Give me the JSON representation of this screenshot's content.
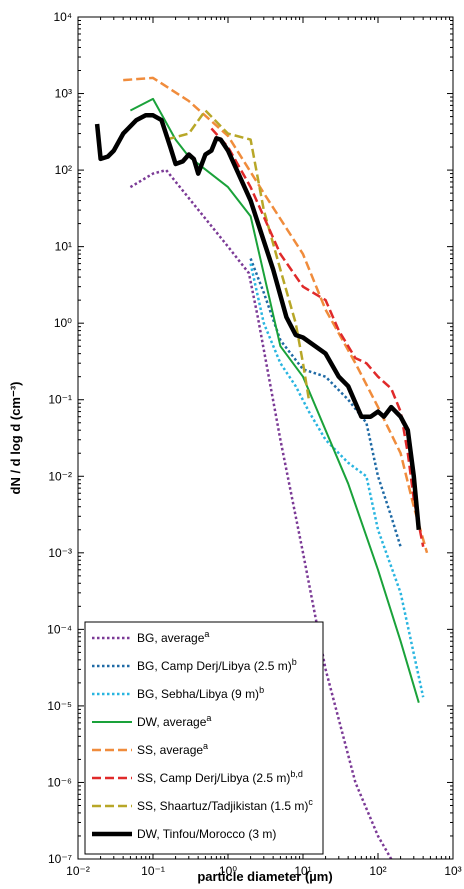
{
  "chart_data": {
    "type": "line",
    "xlabel": "particle diameter (µm)",
    "ylabel": "dN / d log d (cm⁻³)",
    "xscale": "log",
    "yscale": "log",
    "xlim": [
      0.01,
      1000
    ],
    "ylim": [
      1e-07,
      10000
    ],
    "legend_position": "bottom-left",
    "x_tick_labels": [
      "10⁻²",
      "10⁻¹",
      "10⁰",
      "10¹",
      "10²",
      "10³"
    ],
    "y_tick_labels": [
      "10⁴",
      "10³",
      "10²",
      "10¹",
      "10⁰",
      "10⁻¹",
      "10⁻²",
      "10⁻³",
      "10⁻⁴",
      "10⁻⁵",
      "10⁻⁶",
      "10⁻⁷"
    ],
    "series": [
      {
        "name": "BG, average",
        "superscript": "a",
        "color": "#7b3a96",
        "style": "dotted",
        "points": [
          [
            0.05,
            60
          ],
          [
            0.1,
            90
          ],
          [
            0.15,
            100
          ],
          [
            1.0,
            10
          ],
          [
            1.9,
            4.5
          ],
          [
            2.5,
            1.2
          ],
          [
            5,
            0.03
          ],
          [
            10,
            0.001
          ],
          [
            20,
            3e-05
          ],
          [
            50,
            1e-06
          ],
          [
            100,
            2e-07
          ],
          [
            150,
            1e-07
          ]
        ]
      },
      {
        "name": "BG, Camp Derj/Libya (2.5 m)",
        "superscript": "b",
        "color": "#1f6aa5",
        "style": "dotted",
        "points": [
          [
            2,
            7
          ],
          [
            3,
            2.5
          ],
          [
            5,
            0.6
          ],
          [
            10,
            0.25
          ],
          [
            20,
            0.2
          ],
          [
            40,
            0.1
          ],
          [
            70,
            0.05
          ],
          [
            100,
            0.01
          ],
          [
            150,
            0.003
          ],
          [
            200,
            0.0012
          ]
        ]
      },
      {
        "name": "BG, Sebha/Libya (9 m)",
        "superscript": "b",
        "color": "#29b5e0",
        "style": "dotted",
        "points": [
          [
            2,
            6
          ],
          [
            3,
            1
          ],
          [
            5,
            0.3
          ],
          [
            8,
            0.15
          ],
          [
            12,
            0.07
          ],
          [
            20,
            0.03
          ],
          [
            40,
            0.015
          ],
          [
            70,
            0.01
          ],
          [
            100,
            0.002
          ],
          [
            200,
            0.0003
          ],
          [
            400,
            1.3e-05
          ]
        ]
      },
      {
        "name": "DW, average",
        "superscript": "a",
        "color": "#1aa23a",
        "style": "solid",
        "points": [
          [
            0.05,
            600
          ],
          [
            0.1,
            850
          ],
          [
            0.2,
            250
          ],
          [
            0.3,
            150
          ],
          [
            1,
            60
          ],
          [
            2,
            25
          ],
          [
            5,
            0.5
          ],
          [
            10,
            0.2
          ],
          [
            40,
            0.008
          ],
          [
            100,
            0.0006
          ],
          [
            200,
            7e-05
          ],
          [
            350,
            1.1e-05
          ]
        ]
      },
      {
        "name": "SS, average",
        "superscript": "a",
        "color": "#f08c3c",
        "style": "dashed",
        "points": [
          [
            0.04,
            1500
          ],
          [
            0.1,
            1600
          ],
          [
            0.3,
            800
          ],
          [
            1,
            280
          ],
          [
            3,
            50
          ],
          [
            10,
            8
          ],
          [
            20,
            1.5
          ],
          [
            50,
            0.3
          ],
          [
            100,
            0.08
          ],
          [
            200,
            0.02
          ],
          [
            300,
            0.004
          ],
          [
            450,
            0.001
          ]
        ]
      },
      {
        "name": "SS, Camp Derj/Libya (2.5 m)",
        "superscript": "b,d",
        "color": "#e02a2a",
        "style": "dashed",
        "points": [
          [
            0.6,
            350
          ],
          [
            1,
            200
          ],
          [
            2,
            60
          ],
          [
            5,
            8
          ],
          [
            10,
            3
          ],
          [
            20,
            2
          ],
          [
            30,
            0.8
          ],
          [
            50,
            0.35
          ],
          [
            70,
            0.3
          ],
          [
            100,
            0.2
          ],
          [
            150,
            0.14
          ],
          [
            200,
            0.07
          ],
          [
            250,
            0.02
          ],
          [
            300,
            0.005
          ],
          [
            400,
            0.0012
          ]
        ]
      },
      {
        "name": "SS, Shaartuz/Tadjikistan (1.5 m)",
        "superscript": "c",
        "color": "#b8a728",
        "style": "dashed",
        "points": [
          [
            0.15,
            250
          ],
          [
            0.3,
            300
          ],
          [
            0.5,
            600
          ],
          [
            1,
            300
          ],
          [
            2,
            250
          ],
          [
            3,
            30
          ],
          [
            5,
            5
          ],
          [
            8,
            1
          ],
          [
            10,
            0.3
          ],
          [
            12,
            0.1
          ]
        ]
      },
      {
        "name": "DW, Tinfou/Morocco (3 m)",
        "superscript": "",
        "color": "#000000",
        "style": "solid-bold",
        "points": [
          [
            0.018,
            400
          ],
          [
            0.02,
            140
          ],
          [
            0.025,
            150
          ],
          [
            0.03,
            180
          ],
          [
            0.04,
            300
          ],
          [
            0.06,
            450
          ],
          [
            0.08,
            520
          ],
          [
            0.1,
            520
          ],
          [
            0.13,
            450
          ],
          [
            0.17,
            200
          ],
          [
            0.2,
            120
          ],
          [
            0.25,
            130
          ],
          [
            0.3,
            160
          ],
          [
            0.35,
            140
          ],
          [
            0.4,
            90
          ],
          [
            0.5,
            160
          ],
          [
            0.6,
            180
          ],
          [
            0.7,
            260
          ],
          [
            0.8,
            250
          ],
          [
            1,
            180
          ],
          [
            2,
            40
          ],
          [
            4,
            5
          ],
          [
            6,
            1.2
          ],
          [
            8,
            0.7
          ],
          [
            10,
            0.65
          ],
          [
            20,
            0.4
          ],
          [
            30,
            0.2
          ],
          [
            40,
            0.15
          ],
          [
            60,
            0.06
          ],
          [
            80,
            0.06
          ],
          [
            100,
            0.07
          ],
          [
            120,
            0.06
          ],
          [
            150,
            0.08
          ],
          [
            200,
            0.06
          ],
          [
            250,
            0.04
          ],
          [
            300,
            0.01
          ],
          [
            350,
            0.002
          ]
        ]
      }
    ]
  }
}
